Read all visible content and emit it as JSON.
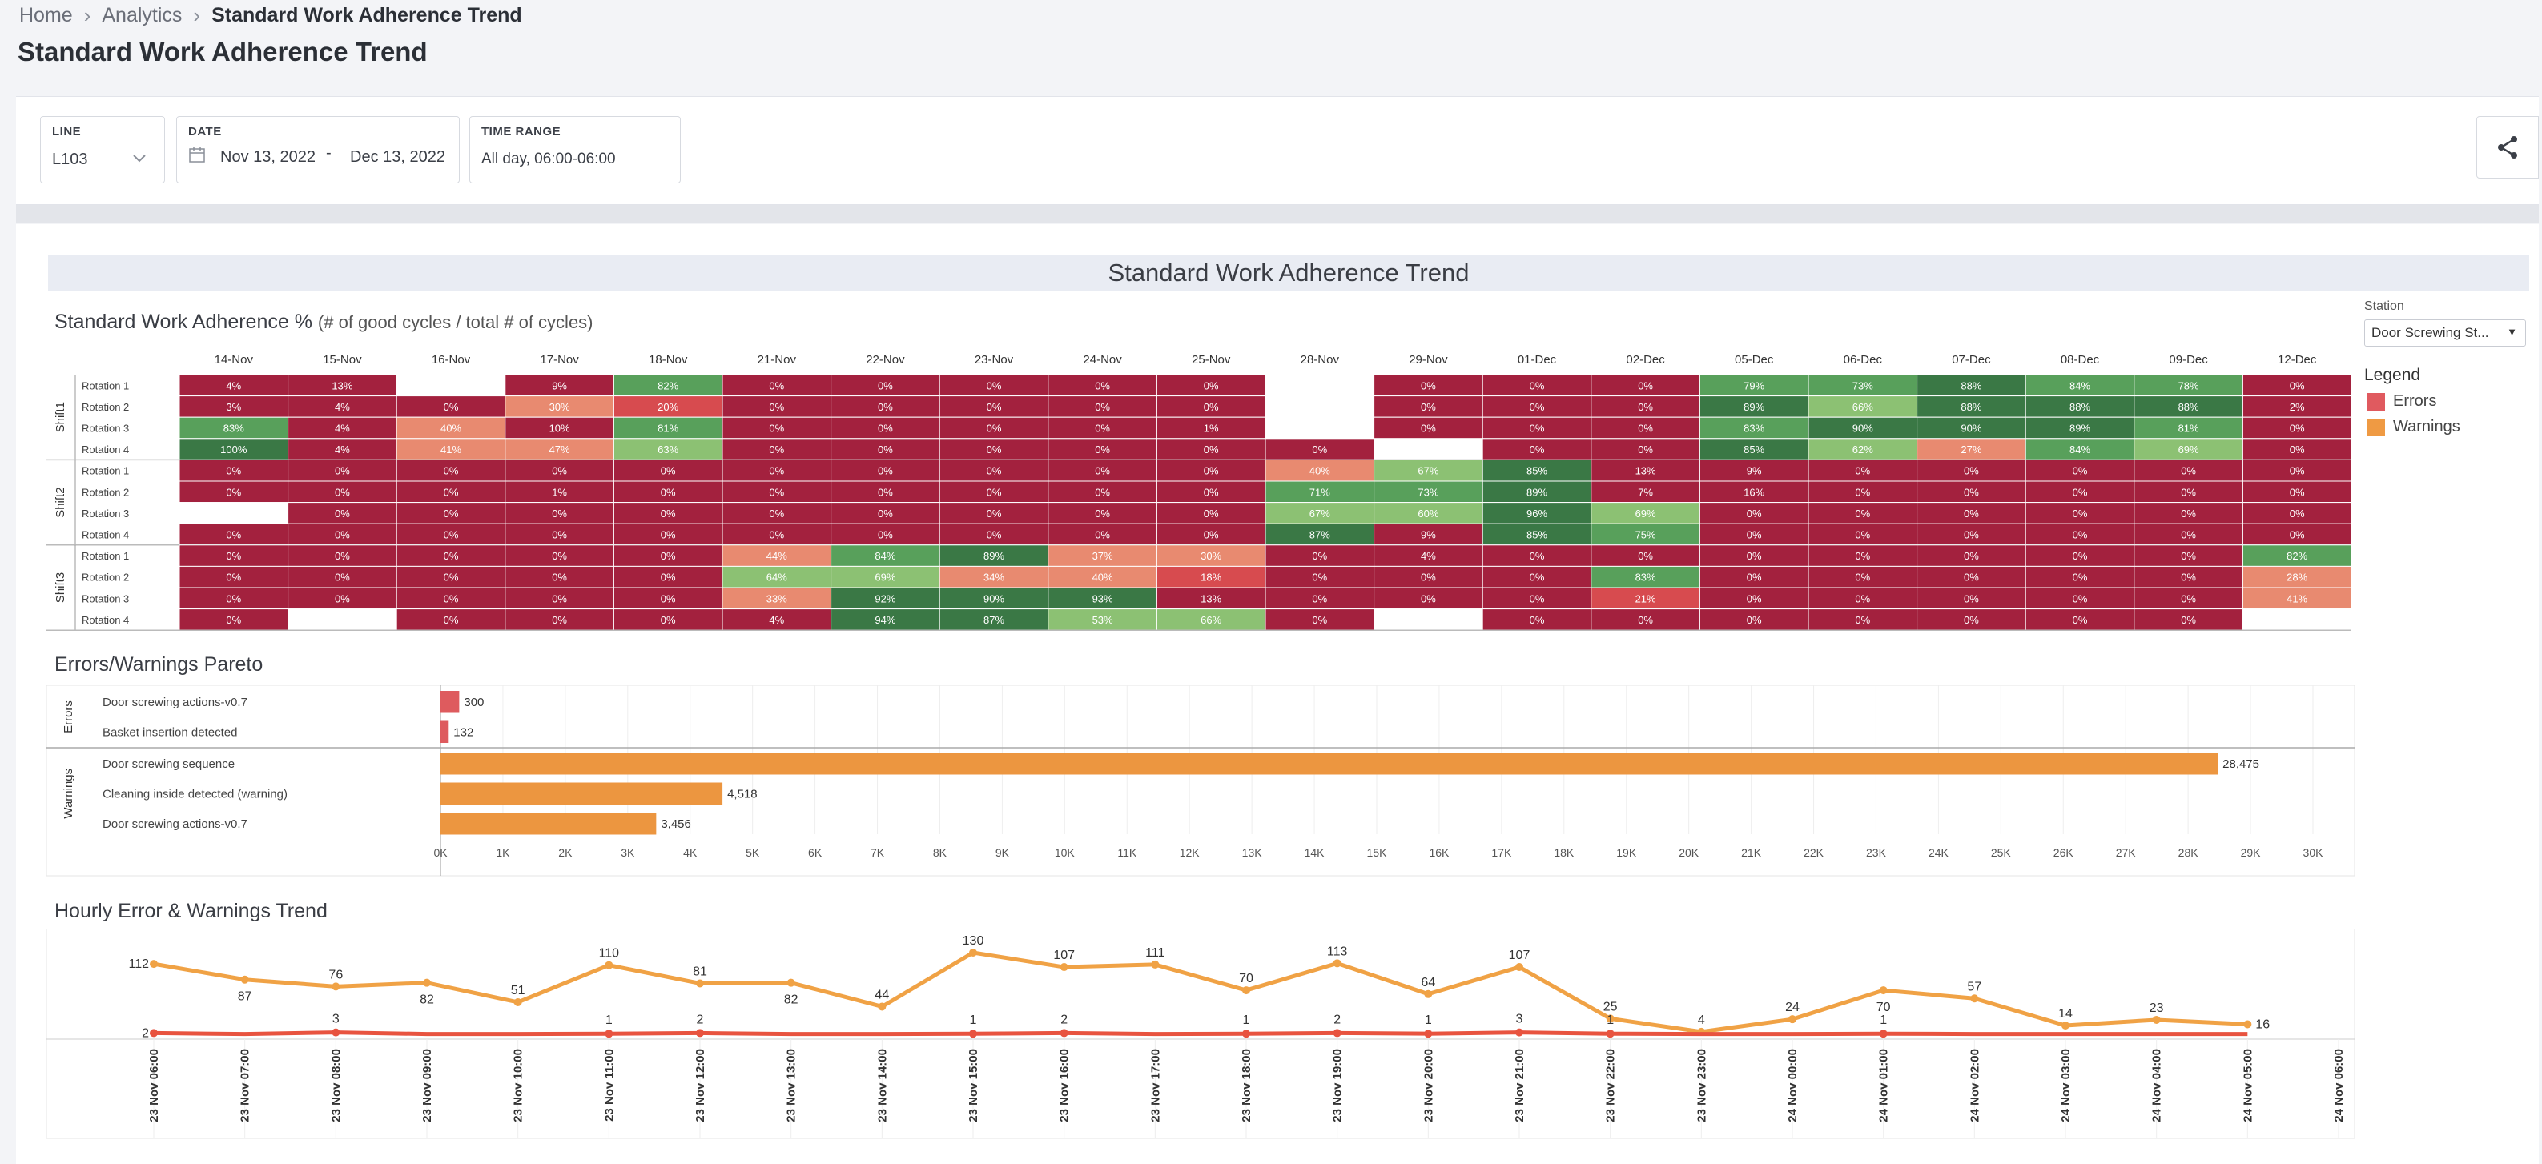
{
  "breadcrumb": {
    "home": "Home",
    "analytics": "Analytics",
    "current": "Standard Work Adherence Trend"
  },
  "page_title": "Standard Work Adherence Trend",
  "filters": {
    "line": {
      "label": "LINE",
      "value": "L103"
    },
    "date": {
      "label": "DATE",
      "from": "Nov 13, 2022",
      "sep": "-",
      "to": "Dec 13, 2022"
    },
    "time_range": {
      "label": "TIME RANGE",
      "value": "All day, 06:00-06:00"
    }
  },
  "dashboard_title": "Standard Work Adherence Trend",
  "station": {
    "label": "Station",
    "value": "Door Screwing St..."
  },
  "legend": {
    "title": "Legend",
    "items": [
      {
        "label": "Errors",
        "color": "#e05a5f"
      },
      {
        "label": "Warnings",
        "color": "#ef9a43"
      }
    ]
  },
  "colors": {
    "heat_red": "#a3213e",
    "heat_salmon": "#e88a70",
    "heat_coral": "#d74b4f",
    "heat_lightgreen": "#8cc173",
    "heat_midgreen": "#58a05b",
    "heat_darkgreen": "#3a7845",
    "error_line": "#e8533f",
    "warning_line": "#f0a245",
    "error_bar": "#de5b5e",
    "warning_bar": "#ec9640"
  },
  "heatmap": {
    "title": "Standard Work Adherence %",
    "subtitle": "(# of good cycles / total # of cycles)",
    "dates": [
      "14-Nov",
      "15-Nov",
      "16-Nov",
      "17-Nov",
      "18-Nov",
      "21-Nov",
      "22-Nov",
      "23-Nov",
      "24-Nov",
      "25-Nov",
      "28-Nov",
      "29-Nov",
      "01-Dec",
      "02-Dec",
      "05-Dec",
      "06-Dec",
      "07-Dec",
      "08-Dec",
      "09-Dec",
      "12-Dec"
    ],
    "shifts": [
      {
        "name": "Shift1",
        "rows": [
          {
            "label": "Rotation 1",
            "cells": [
              "4%",
              "13%",
              "",
              "9%",
              "82%",
              "0%",
              "0%",
              "0%",
              "0%",
              "0%",
              "",
              "0%",
              "0%",
              "0%",
              "79%",
              "73%",
              "88%",
              "84%",
              "78%",
              "0%"
            ]
          },
          {
            "label": "Rotation 2",
            "cells": [
              "3%",
              "4%",
              "0%",
              "30%",
              "20%",
              "0%",
              "0%",
              "0%",
              "0%",
              "0%",
              "",
              "0%",
              "0%",
              "0%",
              "89%",
              "66%",
              "88%",
              "88%",
              "88%",
              "2%"
            ]
          },
          {
            "label": "Rotation 3",
            "cells": [
              "83%",
              "4%",
              "40%",
              "10%",
              "81%",
              "0%",
              "0%",
              "0%",
              "0%",
              "1%",
              "",
              "0%",
              "0%",
              "0%",
              "83%",
              "90%",
              "90%",
              "89%",
              "81%",
              "0%"
            ]
          },
          {
            "label": "Rotation 4",
            "cells": [
              "100%",
              "4%",
              "41%",
              "47%",
              "63%",
              "0%",
              "0%",
              "0%",
              "0%",
              "0%",
              "0%",
              "",
              "0%",
              "0%",
              "85%",
              "62%",
              "27%",
              "84%",
              "69%",
              "0%"
            ]
          }
        ]
      },
      {
        "name": "Shift2",
        "rows": [
          {
            "label": "Rotation 1",
            "cells": [
              "0%",
              "0%",
              "0%",
              "0%",
              "0%",
              "0%",
              "0%",
              "0%",
              "0%",
              "0%",
              "40%",
              "67%",
              "85%",
              "13%",
              "9%",
              "0%",
              "0%",
              "0%",
              "0%",
              "0%"
            ]
          },
          {
            "label": "Rotation 2",
            "cells": [
              "0%",
              "0%",
              "0%",
              "1%",
              "0%",
              "0%",
              "0%",
              "0%",
              "0%",
              "0%",
              "71%",
              "73%",
              "89%",
              "7%",
              "16%",
              "0%",
              "0%",
              "0%",
              "0%",
              "0%"
            ]
          },
          {
            "label": "Rotation 3",
            "cells": [
              "",
              "0%",
              "0%",
              "0%",
              "0%",
              "0%",
              "0%",
              "0%",
              "0%",
              "0%",
              "67%",
              "60%",
              "96%",
              "69%",
              "0%",
              "0%",
              "0%",
              "0%",
              "0%",
              "0%"
            ]
          },
          {
            "label": "Rotation 4",
            "cells": [
              "0%",
              "0%",
              "0%",
              "0%",
              "0%",
              "0%",
              "0%",
              "0%",
              "0%",
              "0%",
              "87%",
              "9%",
              "85%",
              "75%",
              "0%",
              "0%",
              "0%",
              "0%",
              "0%",
              "0%"
            ]
          }
        ]
      },
      {
        "name": "Shift3",
        "rows": [
          {
            "label": "Rotation 1",
            "cells": [
              "0%",
              "0%",
              "0%",
              "0%",
              "0%",
              "44%",
              "84%",
              "89%",
              "37%",
              "30%",
              "0%",
              "4%",
              "0%",
              "0%",
              "0%",
              "0%",
              "0%",
              "0%",
              "0%",
              "82%"
            ]
          },
          {
            "label": "Rotation 2",
            "cells": [
              "0%",
              "0%",
              "0%",
              "0%",
              "0%",
              "64%",
              "69%",
              "34%",
              "40%",
              "18%",
              "0%",
              "0%",
              "0%",
              "83%",
              "0%",
              "0%",
              "0%",
              "0%",
              "0%",
              "28%"
            ]
          },
          {
            "label": "Rotation 3",
            "cells": [
              "0%",
              "0%",
              "0%",
              "0%",
              "0%",
              "33%",
              "92%",
              "90%",
              "93%",
              "13%",
              "0%",
              "0%",
              "0%",
              "21%",
              "0%",
              "0%",
              "0%",
              "0%",
              "0%",
              "41%"
            ]
          },
          {
            "label": "Rotation 4",
            "cells": [
              "0%",
              "",
              "0%",
              "0%",
              "0%",
              "4%",
              "94%",
              "87%",
              "53%",
              "66%",
              "0%",
              "",
              "0%",
              "0%",
              "0%",
              "0%",
              "0%",
              "0%",
              "0%",
              ""
            ]
          }
        ]
      }
    ]
  },
  "chart_data": [
    {
      "type": "bar",
      "title": "Errors/Warnings Pareto",
      "orientation": "horizontal",
      "groups": [
        {
          "name": "Errors",
          "items": [
            {
              "label": "Door screwing actions-v0.7",
              "value": 300,
              "display": "300"
            },
            {
              "label": "Basket insertion detected",
              "value": 132,
              "display": "132"
            }
          ]
        },
        {
          "name": "Warnings",
          "items": [
            {
              "label": "Door screwing sequence",
              "value": 28475,
              "display": "28,475"
            },
            {
              "label": "Cleaning inside detected (warning)",
              "value": 4518,
              "display": "4,518"
            },
            {
              "label": "Door screwing actions-v0.7",
              "value": 3456,
              "display": "3,456"
            }
          ]
        }
      ],
      "xlim": [
        0,
        30000
      ],
      "tick_labels": [
        "0K",
        "1K",
        "2K",
        "3K",
        "4K",
        "5K",
        "6K",
        "7K",
        "8K",
        "9K",
        "10K",
        "11K",
        "12K",
        "13K",
        "14K",
        "15K",
        "16K",
        "17K",
        "18K",
        "19K",
        "20K",
        "21K",
        "22K",
        "23K",
        "24K",
        "25K",
        "26K",
        "27K",
        "28K",
        "29K",
        "30K"
      ]
    },
    {
      "type": "line",
      "title": "Hourly Error & Warnings Trend",
      "x": [
        "23 Nov 06:00",
        "23 Nov 07:00",
        "23 Nov 08:00",
        "23 Nov 09:00",
        "23 Nov 10:00",
        "23 Nov 11:00",
        "23 Nov 12:00",
        "23 Nov 13:00",
        "23 Nov 14:00",
        "23 Nov 15:00",
        "23 Nov 16:00",
        "23 Nov 17:00",
        "23 Nov 18:00",
        "23 Nov 19:00",
        "23 Nov 20:00",
        "23 Nov 21:00",
        "23 Nov 22:00",
        "23 Nov 23:00",
        "24 Nov 00:00",
        "24 Nov 01:00",
        "24 Nov 02:00",
        "24 Nov 03:00",
        "24 Nov 04:00",
        "24 Nov 05:00",
        "24 Nov 06:00"
      ],
      "series": [
        {
          "name": "Warnings",
          "values": [
            112,
            87,
            76,
            82,
            51,
            110,
            81,
            82,
            44,
            130,
            107,
            111,
            70,
            113,
            64,
            107,
            25,
            4,
            24,
            70,
            57,
            14,
            23,
            16,
            null
          ]
        },
        {
          "name": "Errors",
          "values": [
            2,
            null,
            3,
            null,
            null,
            1,
            2,
            null,
            null,
            1,
            2,
            null,
            1,
            2,
            1,
            3,
            1,
            null,
            null,
            1,
            null,
            null,
            null,
            null,
            null
          ]
        }
      ]
    }
  ]
}
